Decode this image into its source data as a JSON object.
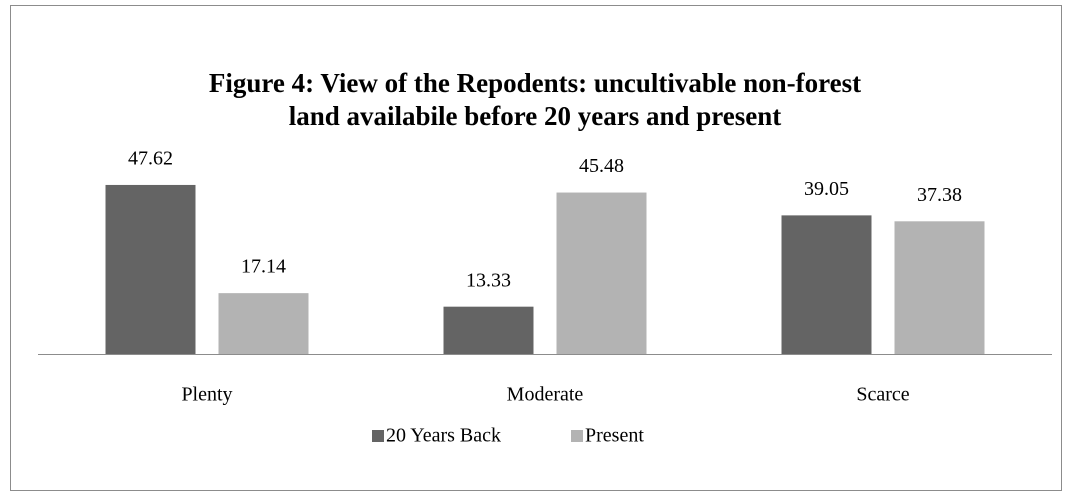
{
  "chart_data": {
    "type": "bar",
    "title": [
      "Figure 4: View of the Repodents: uncultivable non-forest",
      "land availabile before 20 years and present"
    ],
    "categories": [
      "Plenty",
      "Moderate",
      "Scarce"
    ],
    "series": [
      {
        "name": "20 Years Back",
        "color": "#646464",
        "values": [
          47.62,
          13.33,
          39.05
        ]
      },
      {
        "name": "Present",
        "color": "#b3b3b3",
        "values": [
          17.14,
          45.48,
          37.38
        ]
      }
    ],
    "ylim": [
      0,
      60
    ],
    "legend": "bottom"
  }
}
